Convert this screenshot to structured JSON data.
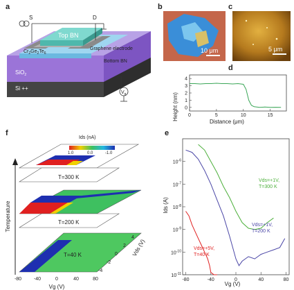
{
  "panels": {
    "a": {
      "letter": "a",
      "labels": {
        "source": "S",
        "drain": "D",
        "top_bn": "Top BN",
        "material": "Cr",
        "material_sub1": "2",
        "material_mid": "Ge",
        "material_sub2": "2",
        "material_end": "Te",
        "material_sub3": "6",
        "graphene": "Graphene electrode",
        "bottom_bn": "Bottom BN",
        "sio2": "SiO",
        "sio2_sub": "2",
        "si": "Si ++",
        "vg": "V",
        "vg_sub": "g"
      }
    },
    "b": {
      "letter": "b",
      "scale_bar": "10 μm"
    },
    "c": {
      "letter": "c",
      "scale_bar": "5 μm"
    },
    "d": {
      "letter": "d",
      "xlabel": "Distance (μm)",
      "ylabel": "Height (nm)"
    },
    "e": {
      "letter": "e",
      "xlabel": "Vg (V)",
      "ylabel": "Ids (A)",
      "annotations": [
        {
          "line1": "Vds=+1V,",
          "line2": "T=300 K",
          "color": "#4caf3a"
        },
        {
          "line1": "Vds=+1V,",
          "line2": "T=200 K",
          "color": "#4a46a6"
        },
        {
          "line1": "Vds=+5V,",
          "line2": "T=40 K",
          "color": "#e02020"
        }
      ]
    },
    "f": {
      "letter": "f",
      "colorbar_title": "Ids (nA)",
      "colorbar_ticks": [
        "1.0",
        "0.0",
        "-1.0"
      ],
      "temp_axis": "Temperature",
      "layers": [
        "T=300 K",
        "T=200 K",
        "T=40 K"
      ],
      "x_ticks": [
        "-80",
        "-40",
        "0",
        "40",
        "80"
      ],
      "x_label": "Vg (V)",
      "y_ticks": [
        "4",
        "2",
        "0",
        "-2",
        "-4"
      ],
      "y_label": "Vds (V)"
    }
  },
  "chart_data": [
    {
      "type": "line",
      "panel": "d",
      "xlabel": "Distance (μm)",
      "ylabel": "Height (nm)",
      "xlim": [
        0,
        18
      ],
      "ylim": [
        -0.5,
        4.5
      ],
      "x_ticks": [
        "0",
        "5",
        "10",
        "15"
      ],
      "y_ticks": [
        "0",
        "1",
        "2",
        "3",
        "4"
      ],
      "series": [
        {
          "color": "#3aa657",
          "x": [
            0,
            1,
            2,
            3,
            4,
            5,
            6,
            7,
            8,
            9,
            10,
            10.5,
            11,
            11.5,
            12,
            12.5,
            13,
            14,
            15,
            16,
            17
          ],
          "y": [
            3.3,
            3.3,
            3.25,
            3.3,
            3.3,
            3.35,
            3.3,
            3.3,
            3.25,
            3.3,
            3.2,
            2.5,
            1.0,
            0.3,
            0.1,
            0.05,
            0.0,
            0.05,
            0.0,
            0.02,
            0.0
          ]
        }
      ]
    },
    {
      "type": "line",
      "panel": "e",
      "xlabel": "Vg (V)",
      "ylabel": "Ids (A)",
      "log_y": true,
      "xlim": [
        -85,
        85
      ],
      "ylim_exp": [
        -11,
        -5
      ],
      "x_ticks": [
        "-80",
        "-40",
        "0",
        "40",
        "80"
      ],
      "y_tick_exponents": [
        -11,
        -10,
        -9,
        -8,
        -7,
        -6
      ],
      "series": [
        {
          "name": "Vds=+1V, T=300 K",
          "color": "#4caf3a",
          "x": [
            -60,
            -50,
            -40,
            -30,
            -20,
            -10,
            0,
            10,
            20,
            30,
            40,
            50,
            60
          ],
          "y_exp": [
            -5.25,
            -5.5,
            -6.0,
            -6.5,
            -7.1,
            -7.6,
            -8.2,
            -8.7,
            -8.95,
            -9.0,
            -8.95,
            -8.7,
            -8.5
          ]
        },
        {
          "name": "Vds=+1V, T=200 K",
          "color": "#4a46a6",
          "x": [
            -80,
            -70,
            -60,
            -50,
            -40,
            -30,
            -20,
            -10,
            0,
            5,
            10,
            20,
            30,
            40,
            50,
            60,
            70,
            78
          ],
          "y_exp": [
            -5.5,
            -5.6,
            -5.9,
            -6.4,
            -7.0,
            -7.7,
            -8.4,
            -9.3,
            -10.3,
            -10.6,
            -10.4,
            -10.2,
            -10.3,
            -10.1,
            -10.0,
            -9.9,
            -9.8,
            -9.4
          ]
        },
        {
          "name": "Vds=+5V, T=40 K",
          "color": "#e02020",
          "x": [
            -80,
            -75,
            -70,
            -65,
            -60,
            -55,
            -50,
            -45,
            -42,
            -40,
            -35,
            -30
          ],
          "y_exp": [
            -8.2,
            -8.4,
            -8.8,
            -9.1,
            -9.4,
            -9.7,
            -10.0,
            -10.3,
            -10.6,
            -10.9,
            -11.0,
            -11.0
          ]
        }
      ]
    }
  ]
}
